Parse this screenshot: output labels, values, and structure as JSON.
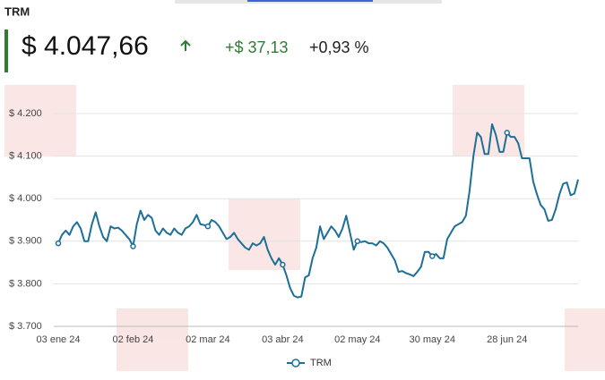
{
  "header": {
    "title": "TRM",
    "price": "$ 4.047,66",
    "change": "+$ 37,13",
    "change_pct": "+0,93 %"
  },
  "chart_data": {
    "type": "line",
    "categories": [
      "03 ene 24",
      null,
      null,
      null,
      null,
      null,
      null,
      null,
      null,
      null,
      null,
      null,
      null,
      null,
      null,
      null,
      null,
      null,
      null,
      null,
      "02 feb 24",
      null,
      null,
      null,
      null,
      null,
      null,
      null,
      null,
      null,
      null,
      null,
      null,
      null,
      null,
      null,
      null,
      null,
      null,
      null,
      "02 mar 24",
      null,
      null,
      null,
      null,
      null,
      null,
      null,
      null,
      null,
      null,
      null,
      null,
      null,
      null,
      null,
      null,
      null,
      null,
      null,
      "03 abr 24",
      null,
      null,
      null,
      null,
      null,
      null,
      null,
      null,
      null,
      null,
      null,
      null,
      null,
      null,
      null,
      null,
      null,
      null,
      null,
      "02 may 24",
      null,
      null,
      null,
      null,
      null,
      null,
      null,
      null,
      null,
      null,
      null,
      null,
      null,
      null,
      null,
      null,
      null,
      null,
      null,
      "30 may 24",
      null,
      null,
      null,
      null,
      null,
      null,
      null,
      null,
      null,
      null,
      null,
      null,
      null,
      null,
      null,
      null,
      null,
      null,
      null,
      "28 jun 24",
      null,
      null,
      null,
      null,
      null,
      null,
      null,
      null,
      null,
      null,
      null,
      null,
      null,
      null,
      null,
      null,
      null,
      null,
      null
    ],
    "series": [
      {
        "name": "TRM",
        "color": "#1d6f98",
        "values": [
          3895,
          3915,
          3925,
          3915,
          3935,
          3945,
          3930,
          3900,
          3900,
          3940,
          3968,
          3935,
          3910,
          3900,
          3935,
          3930,
          3932,
          3925,
          3915,
          3905,
          3888,
          3940,
          3972,
          3950,
          3962,
          3955,
          3925,
          3915,
          3930,
          3920,
          3915,
          3930,
          3920,
          3915,
          3930,
          3935,
          3945,
          3962,
          3940,
          3938,
          3935,
          3950,
          3945,
          3935,
          3920,
          3905,
          3910,
          3920,
          3905,
          3895,
          3885,
          3880,
          3895,
          3890,
          3895,
          3910,
          3880,
          3860,
          3845,
          3860,
          3845,
          3820,
          3790,
          3772,
          3768,
          3770,
          3815,
          3820,
          3860,
          3885,
          3935,
          3905,
          3920,
          3935,
          3925,
          3910,
          3930,
          3960,
          3920,
          3880,
          3900,
          3898,
          3900,
          3895,
          3895,
          3890,
          3900,
          3895,
          3885,
          3870,
          3855,
          3828,
          3830,
          3825,
          3822,
          3818,
          3828,
          3840,
          3875,
          3875,
          3865,
          3870,
          3860,
          3860,
          3905,
          3920,
          3935,
          3940,
          3945,
          3960,
          4020,
          4100,
          4155,
          4145,
          4105,
          4105,
          4175,
          4150,
          4110,
          4110,
          4155,
          4145,
          4145,
          4130,
          4095,
          4095,
          4095,
          4040,
          4010,
          3985,
          3975,
          3948,
          3950,
          3975,
          4010,
          4035,
          4038,
          4008,
          4012,
          4045
        ]
      }
    ],
    "ylim": [
      3700,
      4200
    ],
    "yticks": [
      {
        "value": 3700,
        "label": "$ 3.700"
      },
      {
        "value": 3800,
        "label": "$ 3.800"
      },
      {
        "value": 3900,
        "label": "$ 3.900"
      },
      {
        "value": 4000,
        "label": "$ 4.000"
      },
      {
        "value": 4100,
        "label": "$ 4.100"
      },
      {
        "value": 4200,
        "label": "$ 4.200"
      }
    ],
    "grid": true,
    "legend": "bottom"
  }
}
